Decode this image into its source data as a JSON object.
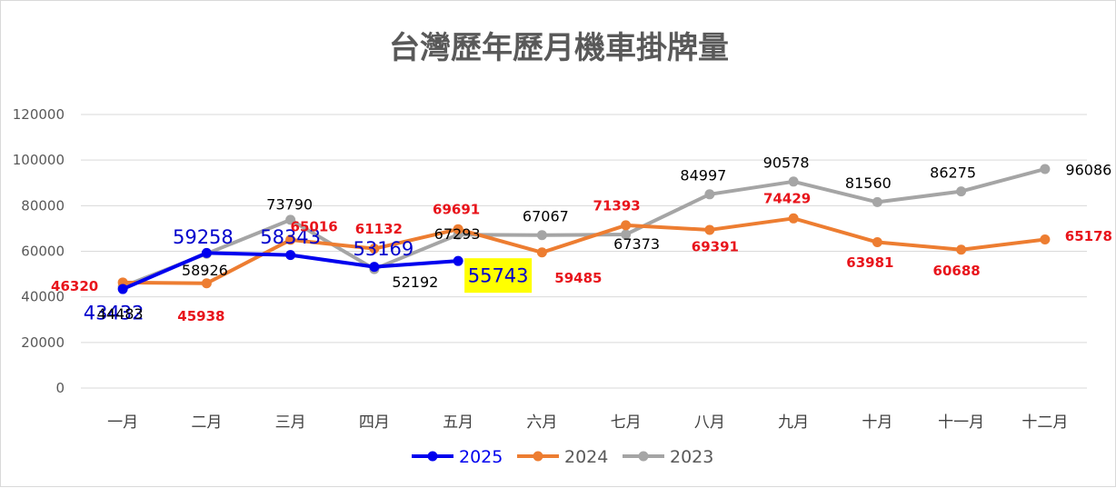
{
  "chart_data": {
    "type": "line",
    "title": "台灣歷年歷月機車掛牌量",
    "xlabel": "",
    "ylabel": "",
    "categories": [
      "一月",
      "二月",
      "三月",
      "四月",
      "五月",
      "六月",
      "七月",
      "八月",
      "九月",
      "十月",
      "十一月",
      "十二月"
    ],
    "ylim": [
      0,
      120000
    ],
    "yticks": [
      0,
      20000,
      40000,
      60000,
      80000,
      100000,
      120000
    ],
    "grid": true,
    "legend_position": "bottom",
    "series": [
      {
        "name": "2025",
        "color": "#0000ee",
        "label_color": "#0000cc",
        "values": [
          43432,
          59258,
          58343,
          53169,
          55743,
          null,
          null,
          null,
          null,
          null,
          null,
          null
        ]
      },
      {
        "name": "2024",
        "color": "#ed7d31",
        "label_color": "#e8141b",
        "values": [
          46320,
          45938,
          65016,
          61132,
          69691,
          59485,
          71393,
          69391,
          74429,
          63981,
          60688,
          65178
        ]
      },
      {
        "name": "2023",
        "color": "#a5a5a5",
        "label_color": "#000000",
        "values": [
          44483,
          58926,
          73790,
          52192,
          67293,
          67067,
          67373,
          84997,
          90578,
          81560,
          86275,
          96086
        ]
      }
    ],
    "highlight": {
      "series": "2025",
      "index": 4,
      "background": "#ffff00"
    }
  }
}
